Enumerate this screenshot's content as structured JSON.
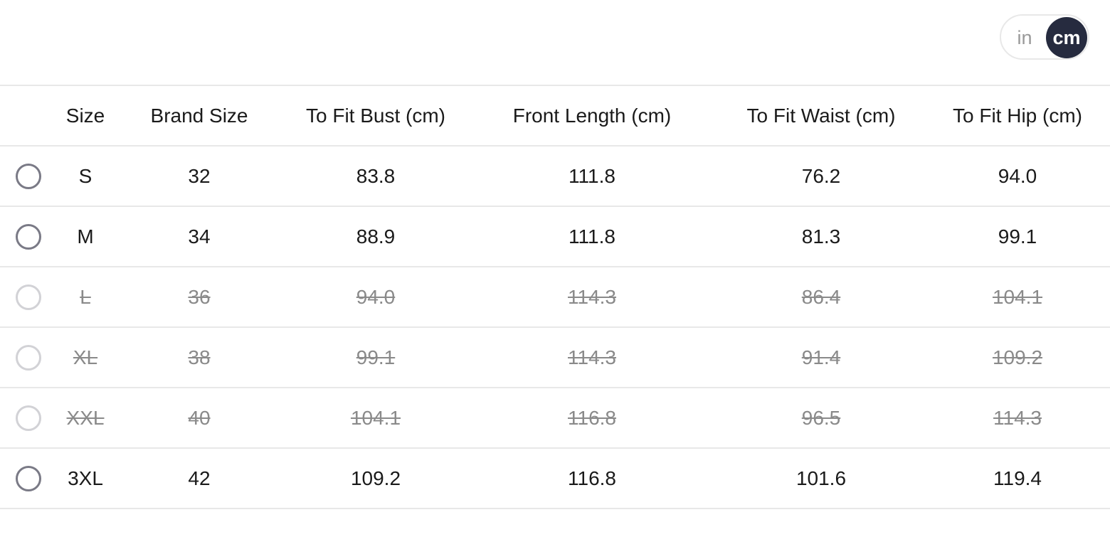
{
  "unit_toggle": {
    "options": [
      "in",
      "cm"
    ],
    "selected": "cm"
  },
  "headers": [
    "Size",
    "Brand Size",
    "To Fit Bust (cm)",
    "Front Length (cm)",
    "To Fit Waist (cm)",
    "To Fit Hip (cm)"
  ],
  "rows": [
    {
      "available": true,
      "cells": [
        "S",
        "32",
        "83.8",
        "111.8",
        "76.2",
        "94.0"
      ]
    },
    {
      "available": true,
      "cells": [
        "M",
        "34",
        "88.9",
        "111.8",
        "81.3",
        "99.1"
      ]
    },
    {
      "available": false,
      "cells": [
        "L",
        "36",
        "94.0",
        "114.3",
        "86.4",
        "104.1"
      ]
    },
    {
      "available": false,
      "cells": [
        "XL",
        "38",
        "99.1",
        "114.3",
        "91.4",
        "109.2"
      ]
    },
    {
      "available": false,
      "cells": [
        "XXL",
        "40",
        "104.1",
        "116.8",
        "96.5",
        "114.3"
      ]
    },
    {
      "available": true,
      "cells": [
        "3XL",
        "42",
        "109.2",
        "116.8",
        "101.6",
        "119.4"
      ]
    }
  ],
  "colors": {
    "toggle_active": "#262b3f",
    "disabled_text": "#8a8a8a",
    "divider": "#e8e8e8"
  }
}
